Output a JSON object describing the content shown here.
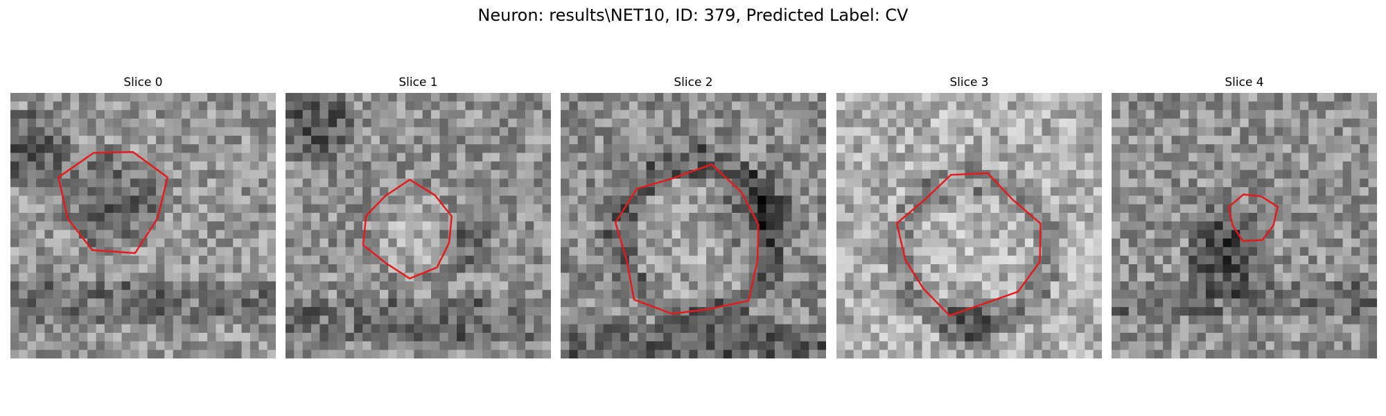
{
  "figure": {
    "title": "Neuron: results\\NET10, ID: 379, Predicted Label: CV",
    "overlay_color": "#e31b1b",
    "colormap": "grayscale",
    "panels": [
      {
        "title": "Slice 0"
      },
      {
        "title": "Slice 1"
      },
      {
        "title": "Slice 2"
      },
      {
        "title": "Slice 3"
      },
      {
        "title": "Slice 4"
      }
    ]
  }
}
